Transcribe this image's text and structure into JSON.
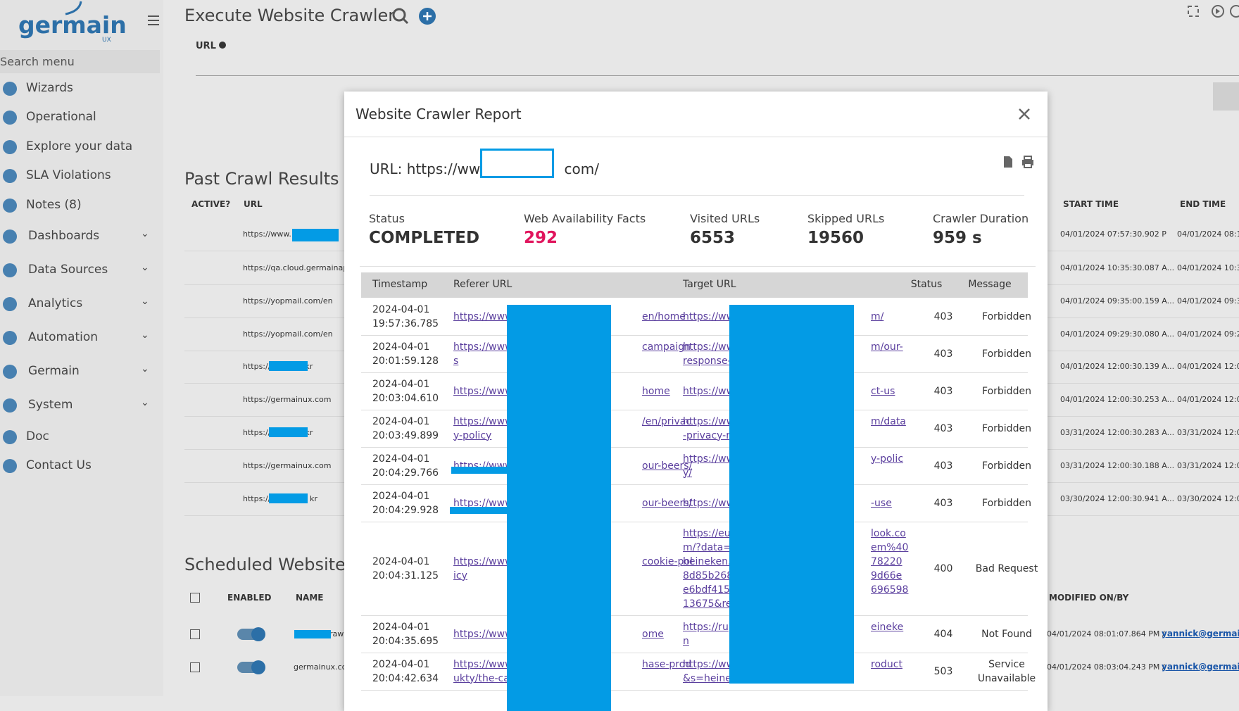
{
  "sidebar": {
    "logo": "germain",
    "logo_sub": "UX",
    "search": "Search menu",
    "items": [
      "Wizards",
      "Operational",
      "Explore your data",
      "SLA Violations",
      "Notes (8)",
      "Dashboards",
      "Data Sources",
      "Analytics",
      "Automation",
      "Germain",
      "System",
      "Doc",
      "Contact Us"
    ]
  },
  "page": {
    "title": "Execute Website Crawler",
    "url_label": "URL",
    "past": {
      "title": "Past Crawl Results",
      "headers": [
        "ACTIVE?",
        "URL",
        "START TIME",
        "END TIME"
      ],
      "rows": [
        [
          "https://www.",
          "04/01/2024 07:57:30.902 P",
          "04/01/2024 08:1"
        ],
        [
          "https://qa.cloud.germainap",
          "04/01/2024 10:35:30.087 A...",
          "04/01/2024 10:3"
        ],
        [
          "https://yopmail.com/en",
          "04/01/2024 09:35:00.159 A...",
          "04/01/2024 09:3"
        ],
        [
          "https://yopmail.com/en",
          "04/01/2024 09:29:30.080 A...",
          "04/01/2024 09:2"
        ],
        [
          "https://",
          ".kr",
          "04/01/2024 12:00:30.139 A...",
          "04/01/2024 12:0"
        ],
        [
          "https://germainux.com",
          "04/01/2024 12:00:30.253 A...",
          "04/01/2024 12:0"
        ],
        [
          "https://",
          ".kr",
          "03/31/2024 12:00:30.283 A...",
          "03/31/2024 12:0"
        ],
        [
          "https://germainux.com",
          "03/31/2024 12:00:30.188 A...",
          "03/31/2024 12:0"
        ],
        [
          "https://",
          "kr",
          "03/30/2024 12:00:30.941 A...",
          "03/30/2024 12:0"
        ]
      ]
    },
    "scheduled": {
      "title": "Scheduled Website C",
      "headers": [
        "ENABLED",
        "NAME",
        "MODIFIED ON/BY"
      ],
      "rows": [
        [
          "raw",
          "04/01/2024 08:01:07.864 PM /",
          "yannick@germai"
        ],
        [
          "germainux.cc",
          "04/01/2024 08:03:04.243 PM /",
          "yannick@germai"
        ]
      ]
    }
  },
  "modal": {
    "title": "Website Crawler Report",
    "url_prefix": "URL: https://www",
    "url_suffix": "com/",
    "stats": [
      {
        "label": "Status",
        "value": "COMPLETED"
      },
      {
        "label": "Web Availability Facts",
        "value": "292"
      },
      {
        "label": "Visited URLs",
        "value": "6553"
      },
      {
        "label": "Skipped URLs",
        "value": "19560"
      },
      {
        "label": "Crawler Duration",
        "value": "959 s"
      }
    ],
    "table": {
      "headers": [
        "Timestamp",
        "Referer URL",
        "Target URL",
        "Status",
        "Message"
      ],
      "rows": [
        {
          "date": "2024-04-01",
          "time": "19:57:36.785",
          "referer": [
            [
              "https://www",
              "en/home"
            ]
          ],
          "target": [
            [
              "https://ww",
              "m/"
            ]
          ],
          "status": "403",
          "message": "Forbidden"
        },
        {
          "date": "2024-04-01",
          "time": "20:01:59.128",
          "referer": [
            [
              "https://www",
              "campaign"
            ],
            [
              "s"
            ]
          ],
          "target": [
            [
              "https://ww",
              "m/our-"
            ],
            [
              "response-"
            ]
          ],
          "status": "403",
          "message": "Forbidden"
        },
        {
          "date": "2024-04-01",
          "time": "20:03:04.610",
          "referer": [
            [
              "https://www",
              "home"
            ]
          ],
          "target": [
            [
              "https://ww",
              "ct-us"
            ]
          ],
          "status": "403",
          "message": "Forbidden"
        },
        {
          "date": "2024-04-01",
          "time": "20:03:49.899",
          "referer": [
            [
              "https://www",
              "/en/privac"
            ],
            [
              "y-policy"
            ]
          ],
          "target": [
            [
              "https://ww",
              "m/data"
            ],
            [
              "-privacy-re"
            ]
          ],
          "status": "403",
          "message": "Forbidden"
        },
        {
          "date": "2024-04-01",
          "time": "20:04:29.766",
          "referer": [
            [
              "https://www",
              "our-beers/"
            ]
          ],
          "target": [
            [
              "https://ww",
              "y-polic"
            ],
            [
              "y/"
            ]
          ],
          "status": "403",
          "message": "Forbidden"
        },
        {
          "date": "2024-04-01",
          "time": "20:04:29.928",
          "referer": [
            [
              "https://www",
              "our-beers/"
            ]
          ],
          "target": [
            [
              "https://ww",
              "-use"
            ]
          ],
          "status": "403",
          "message": "Forbidden"
        },
        {
          "date": "2024-04-01",
          "time": "20:04:31.125",
          "referer": [
            [
              "https://www",
              "cookie-pol"
            ],
            [
              "icy"
            ]
          ],
          "target": [
            [
              "https://eu",
              "look.co"
            ],
            [
              "m/?data=0",
              "em%40"
            ],
            [
              "heineken.c",
              "78220"
            ],
            [
              "8d85b268",
              "9d66e"
            ],
            [
              "e6bdf415",
              "696598"
            ],
            [
              "13675&re"
            ]
          ],
          "status": "400",
          "message": "Bad Request"
        },
        {
          "date": "2024-04-01",
          "time": "20:04:35.695",
          "referer": [
            [
              "https://www",
              "ome"
            ]
          ],
          "target": [
            [
              "https://ru",
              "eineke"
            ],
            [
              "n"
            ]
          ],
          "status": "404",
          "message": "Not Found"
        },
        {
          "date": "2024-04-01",
          "time": "20:04:42.634",
          "referer": [
            [
              "https://www",
              "hase-prod"
            ],
            [
              "ukty/the-ca"
            ]
          ],
          "target": [
            [
              "https://ww",
              "roduct"
            ],
            [
              "&s=heinek"
            ]
          ],
          "status": "503",
          "message": "Service Unavailable"
        }
      ]
    }
  }
}
